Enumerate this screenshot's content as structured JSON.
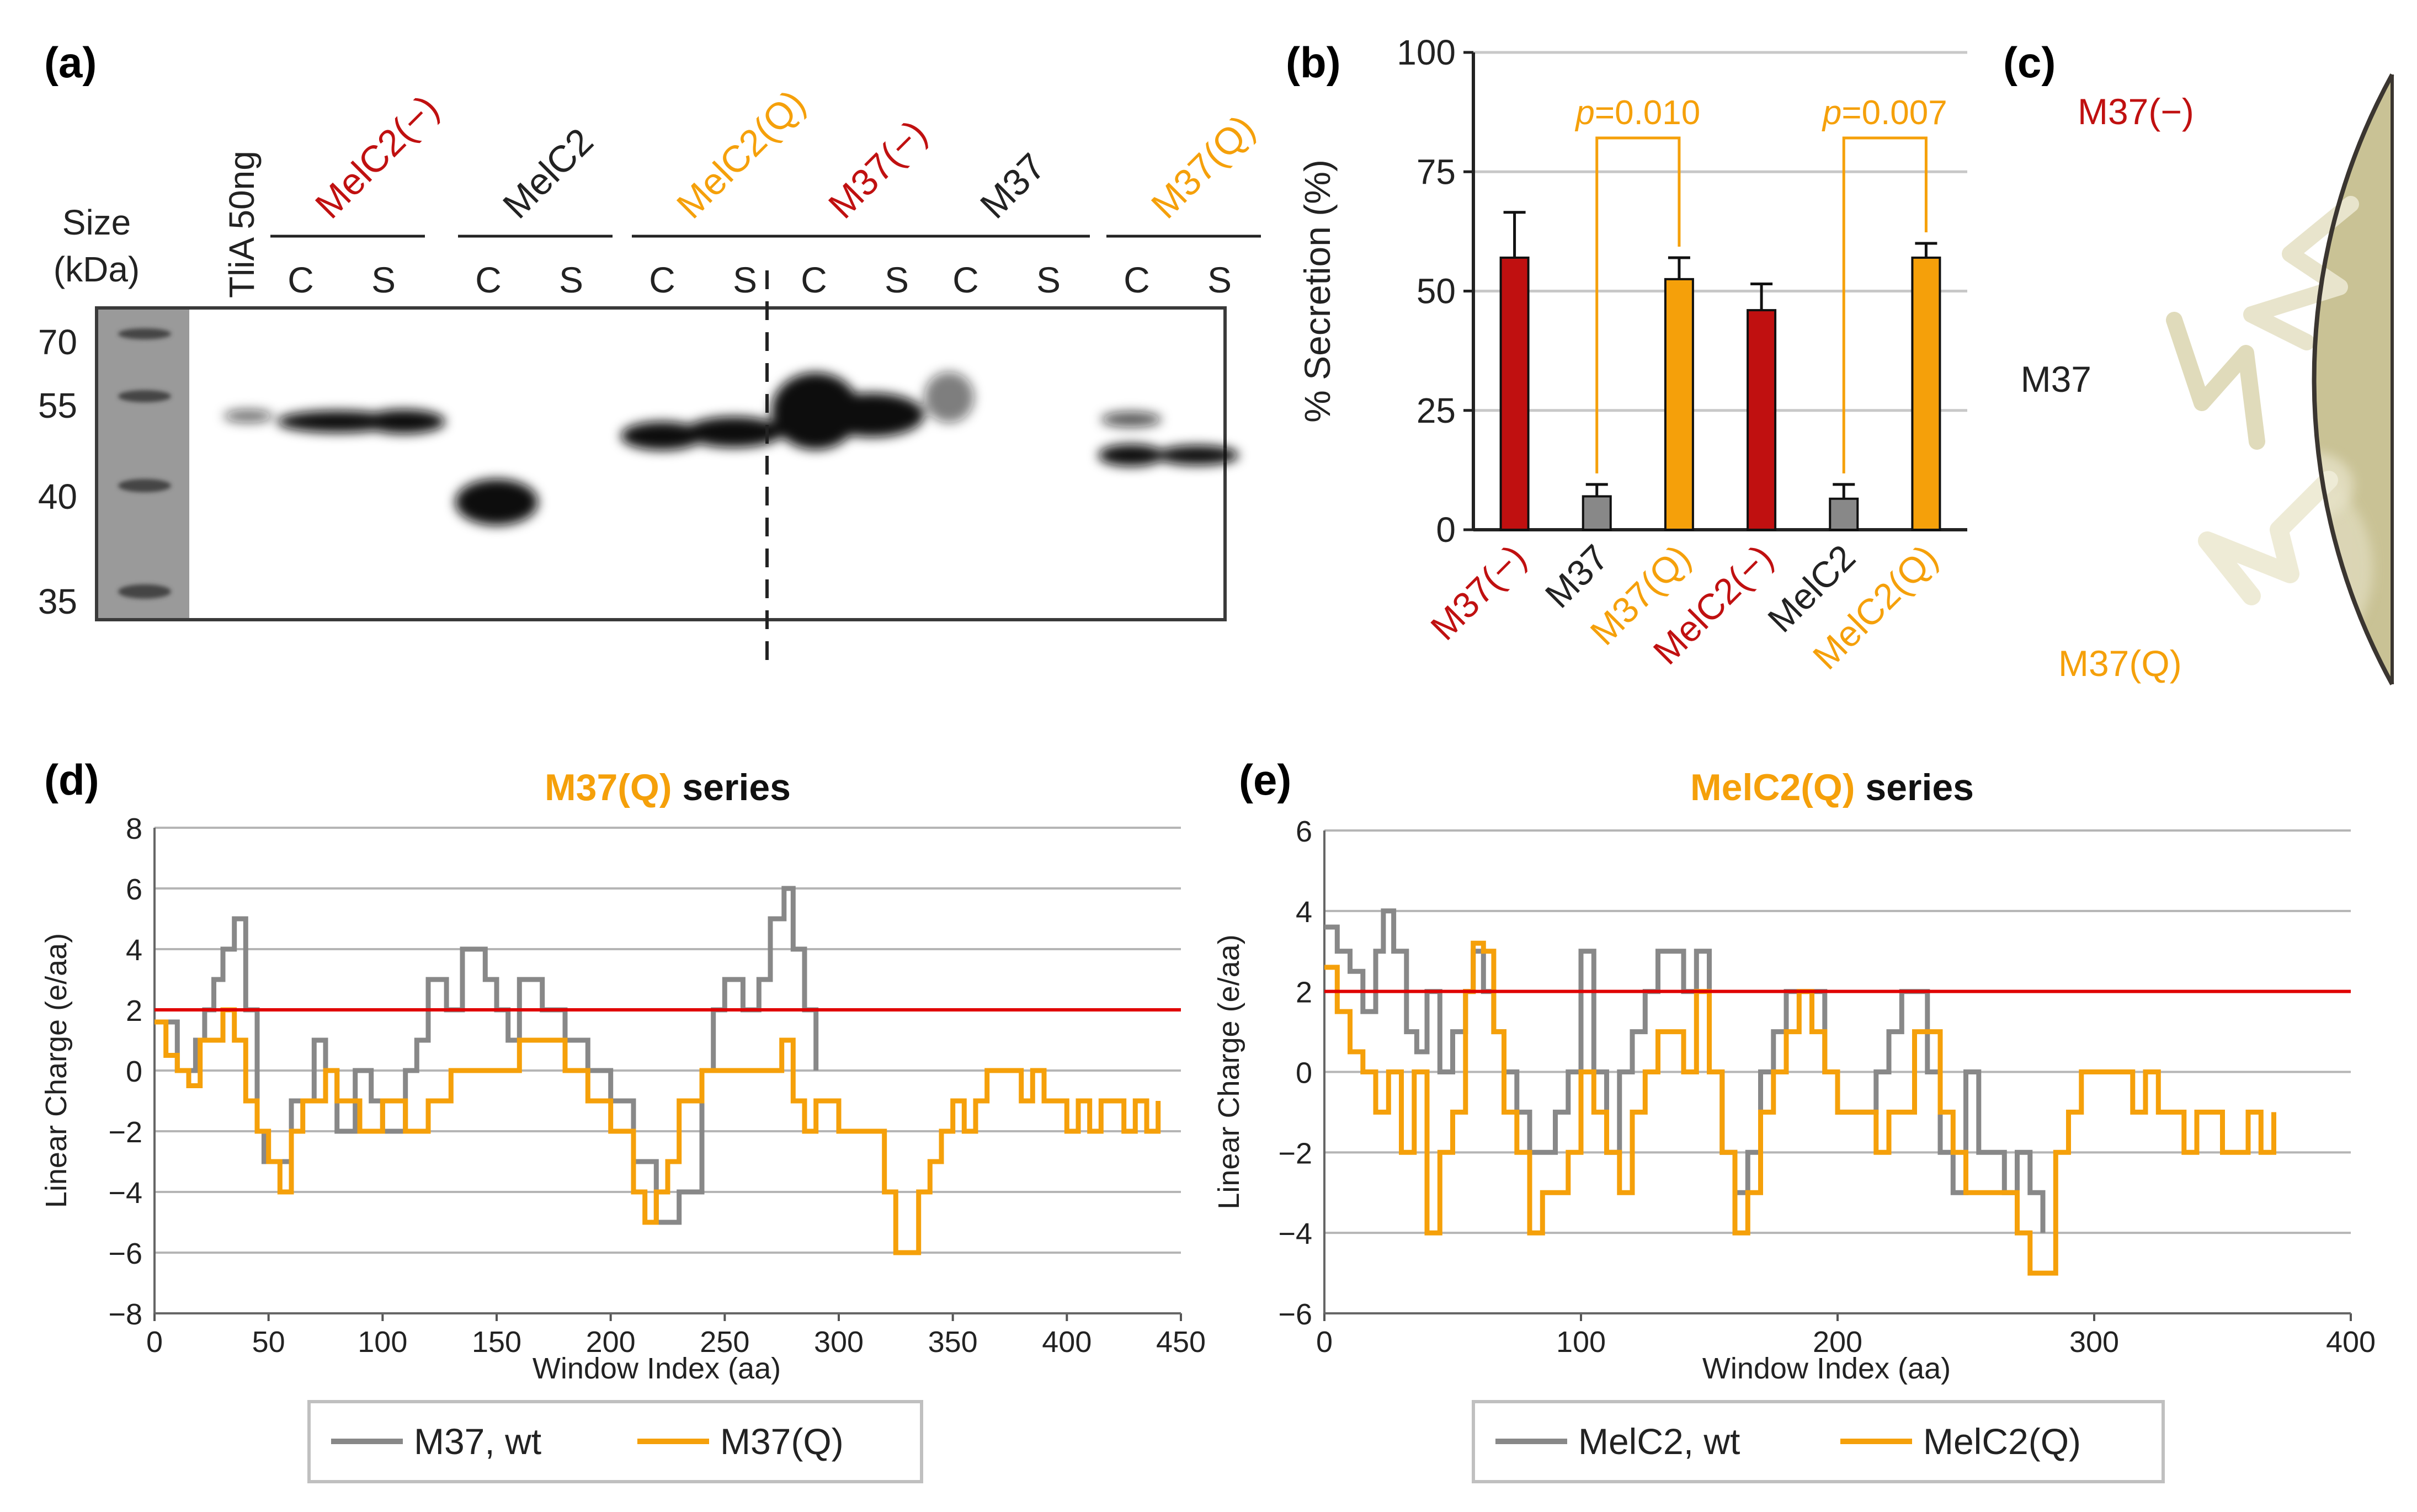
{
  "colors": {
    "red": "#c01010",
    "black": "#222222",
    "orange": "#f5a00a",
    "gray": "#888888",
    "line_red": "#e00000",
    "plate": "#c9c295"
  },
  "panel_a": {
    "label": "(a)",
    "size_title": "Size",
    "size_unit": "(kDa)",
    "size_markers": [
      "70",
      "55",
      "40",
      "35"
    ],
    "tlia_label": "TliA 50ng",
    "groups": [
      {
        "name": "MelC2(−)",
        "color": "red",
        "lanes": [
          "C",
          "S"
        ]
      },
      {
        "name": "MelC2",
        "color": "black",
        "lanes": [
          "C",
          "S"
        ]
      },
      {
        "name": "MelC2(Q)",
        "color": "orange",
        "lanes": [
          "C",
          "S"
        ]
      },
      {
        "name": "M37(−)",
        "color": "red",
        "lanes": [
          "C",
          "S"
        ]
      },
      {
        "name": "M37",
        "color": "black",
        "lanes": [
          "C",
          "S"
        ]
      },
      {
        "name": "M37(Q)",
        "color": "orange",
        "lanes": [
          "C",
          "S"
        ]
      }
    ]
  },
  "panel_b": {
    "label": "(b)",
    "chart_data": {
      "type": "bar",
      "categories": [
        "M37(−)",
        "M37",
        "M37(Q)",
        "MelC2(−)",
        "MelC2",
        "MelC2(Q)"
      ],
      "category_colors": [
        "red",
        "black",
        "orange",
        "red",
        "black",
        "orange"
      ],
      "values": [
        57,
        7,
        52.5,
        46,
        6.5,
        57
      ],
      "errors": [
        9.5,
        2.5,
        4.5,
        5.5,
        3,
        3
      ],
      "bar_colors": [
        "red",
        "gray",
        "orange",
        "red",
        "gray",
        "orange"
      ],
      "ylabel": "% Secretion (%)",
      "ylim": [
        0,
        100
      ],
      "yticks": [
        "0",
        "25",
        "50",
        "75",
        "100"
      ],
      "annotations": [
        {
          "text": "p=0.010",
          "p": "p",
          "rest": "=0.010",
          "from": 1,
          "to": 2
        },
        {
          "text": "p=0.007",
          "p": "p",
          "rest": "=0.007",
          "from": 4,
          "to": 5
        }
      ]
    }
  },
  "panel_c": {
    "label": "(c)",
    "labels": [
      {
        "text": "M37(−)",
        "color": "red"
      },
      {
        "text": "M37",
        "color": "black"
      },
      {
        "text": "M37(Q)",
        "color": "orange"
      }
    ]
  },
  "panel_d": {
    "label": "(d)",
    "title_colored": "M37(Q)",
    "title_rest": " series",
    "chart_data": {
      "type": "line",
      "xlabel": "Window Index (aa)",
      "ylabel": "Linear Charge (e/aa)",
      "xlim": [
        0,
        450
      ],
      "ylim": [
        -8,
        8
      ],
      "xticks": [
        "0",
        "50",
        "100",
        "150",
        "200",
        "250",
        "300",
        "350",
        "400",
        "450"
      ],
      "yticks": [
        "8",
        "6",
        "4",
        "2",
        "0",
        "−2",
        "−4",
        "−6",
        "−8"
      ],
      "threshold": 2,
      "series": [
        {
          "name": "M37, wt",
          "color": "gray",
          "x": [
            0,
            10,
            18,
            22,
            26,
            30,
            35,
            40,
            45,
            48,
            52,
            60,
            70,
            75,
            80,
            88,
            95,
            100,
            110,
            115,
            120,
            128,
            135,
            140,
            145,
            150,
            155,
            160,
            170,
            175,
            180,
            190,
            200,
            210,
            220,
            230,
            240,
            245,
            250,
            258,
            265,
            270,
            276,
            280,
            285,
            290
          ],
          "y": [
            1.6,
            0,
            1,
            2,
            3,
            4,
            5,
            2,
            -2,
            -3,
            -3,
            -1,
            1,
            0,
            -2,
            0,
            -1,
            -2,
            0,
            1,
            3,
            2,
            4,
            4,
            3,
            2,
            1,
            3,
            2,
            2,
            1,
            0,
            -1,
            -3,
            -5,
            -4,
            0,
            2,
            3,
            2,
            3,
            5,
            6,
            4,
            2,
            0
          ]
        },
        {
          "name": "M37(Q)",
          "color": "orange",
          "x": [
            0,
            5,
            10,
            15,
            20,
            25,
            30,
            35,
            40,
            45,
            50,
            55,
            60,
            65,
            70,
            75,
            80,
            90,
            100,
            110,
            120,
            130,
            140,
            150,
            160,
            170,
            175,
            180,
            185,
            190,
            200,
            210,
            215,
            220,
            225,
            230,
            240,
            250,
            260,
            270,
            275,
            280,
            285,
            290,
            300,
            310,
            320,
            325,
            330,
            335,
            340,
            345,
            350,
            355,
            360,
            365,
            370,
            375,
            380,
            385,
            390,
            395,
            400,
            405,
            410,
            415,
            420,
            425,
            430,
            435,
            440
          ],
          "y": [
            1.6,
            0.5,
            0,
            -0.5,
            1,
            1,
            2,
            1,
            -1,
            -2,
            -3,
            -4,
            -2,
            -1,
            -1,
            0,
            -1,
            -2,
            -1,
            -2,
            -1,
            0,
            0,
            0,
            1,
            1,
            1,
            0,
            0,
            -1,
            -2,
            -4,
            -5,
            -4,
            -3,
            -1,
            0,
            0,
            0,
            0,
            1,
            -1,
            -2,
            -1,
            -2,
            -2,
            -4,
            -6,
            -6,
            -4,
            -3,
            -2,
            -1,
            -2,
            -1,
            0,
            0,
            0,
            -1,
            0,
            -1,
            -1,
            -2,
            -1,
            -2,
            -1,
            -1,
            -2,
            -1,
            -2,
            -1
          ]
        }
      ],
      "legend": [
        "M37, wt",
        "M37(Q)"
      ]
    }
  },
  "panel_e": {
    "label": "(e)",
    "title_colored": "MelC2(Q)",
    "title_rest": " series",
    "chart_data": {
      "type": "line",
      "xlabel": "Window Index (aa)",
      "ylabel": "Linear Charge (e/aa)",
      "xlim": [
        0,
        400
      ],
      "ylim": [
        -6,
        6
      ],
      "xticks": [
        "0",
        "100",
        "200",
        "300",
        "400"
      ],
      "yticks": [
        "6",
        "4",
        "2",
        "0",
        "−2",
        "−4",
        "−6"
      ],
      "threshold": 2,
      "series": [
        {
          "name": "MelC2, wt",
          "color": "gray",
          "x": [
            0,
            5,
            10,
            15,
            20,
            23,
            27,
            32,
            36,
            40,
            45,
            50,
            55,
            58,
            62,
            66,
            70,
            75,
            80,
            85,
            90,
            95,
            100,
            105,
            110,
            115,
            120,
            125,
            130,
            135,
            140,
            145,
            150,
            155,
            160,
            165,
            170,
            175,
            180,
            185,
            190,
            195,
            200,
            205,
            210,
            215,
            220,
            225,
            230,
            235,
            240,
            245,
            250,
            255,
            260,
            265,
            270,
            275,
            280
          ],
          "y": [
            3.6,
            3,
            2.5,
            1.5,
            3,
            4,
            3,
            1,
            0.5,
            2,
            0,
            1,
            2,
            3,
            2,
            1,
            0,
            -1,
            -2,
            -2,
            -1,
            0,
            3,
            0,
            -2,
            0,
            1,
            2,
            3,
            3,
            2,
            3,
            0,
            -2,
            -3,
            -2,
            0,
            1,
            2,
            2,
            2,
            0,
            -1,
            -1,
            -1,
            0,
            1,
            2,
            2,
            0,
            -2,
            -3,
            0,
            -2,
            -2,
            -3,
            -2,
            -3,
            -4
          ]
        },
        {
          "name": "MelC2(Q)",
          "color": "orange",
          "x": [
            0,
            5,
            10,
            15,
            20,
            25,
            30,
            35,
            40,
            45,
            50,
            55,
            58,
            62,
            66,
            70,
            75,
            80,
            85,
            90,
            95,
            100,
            105,
            110,
            115,
            120,
            125,
            130,
            135,
            140,
            145,
            150,
            155,
            160,
            165,
            170,
            175,
            180,
            185,
            190,
            195,
            200,
            205,
            210,
            215,
            220,
            225,
            230,
            235,
            240,
            245,
            250,
            255,
            260,
            265,
            270,
            275,
            280,
            285,
            290,
            295,
            300,
            305,
            310,
            315,
            320,
            325,
            330,
            335,
            340,
            345,
            350,
            355,
            360,
            365,
            370
          ],
          "y": [
            2.6,
            1.5,
            0.5,
            0,
            -1,
            0,
            -2,
            0,
            -4,
            -2,
            -1,
            2,
            3.2,
            3,
            1,
            -1,
            -2,
            -4,
            -3,
            -3,
            -2,
            0,
            -1,
            -2,
            -3,
            -1,
            0,
            1,
            1,
            0,
            2,
            0,
            -2,
            -4,
            -3,
            -1,
            0,
            1,
            2,
            1,
            0,
            -1,
            -1,
            -1,
            -2,
            -1,
            -1,
            1,
            1,
            -1,
            -2,
            -3,
            -3,
            -3,
            -3,
            -4,
            -5,
            -5,
            -2,
            -1,
            0,
            0,
            0,
            0,
            -1,
            0,
            -1,
            -1,
            -2,
            -1,
            -1,
            -2,
            -2,
            -1,
            -2,
            -1
          ]
        }
      ],
      "legend": [
        "MelC2, wt",
        "MelC2(Q)"
      ]
    }
  }
}
